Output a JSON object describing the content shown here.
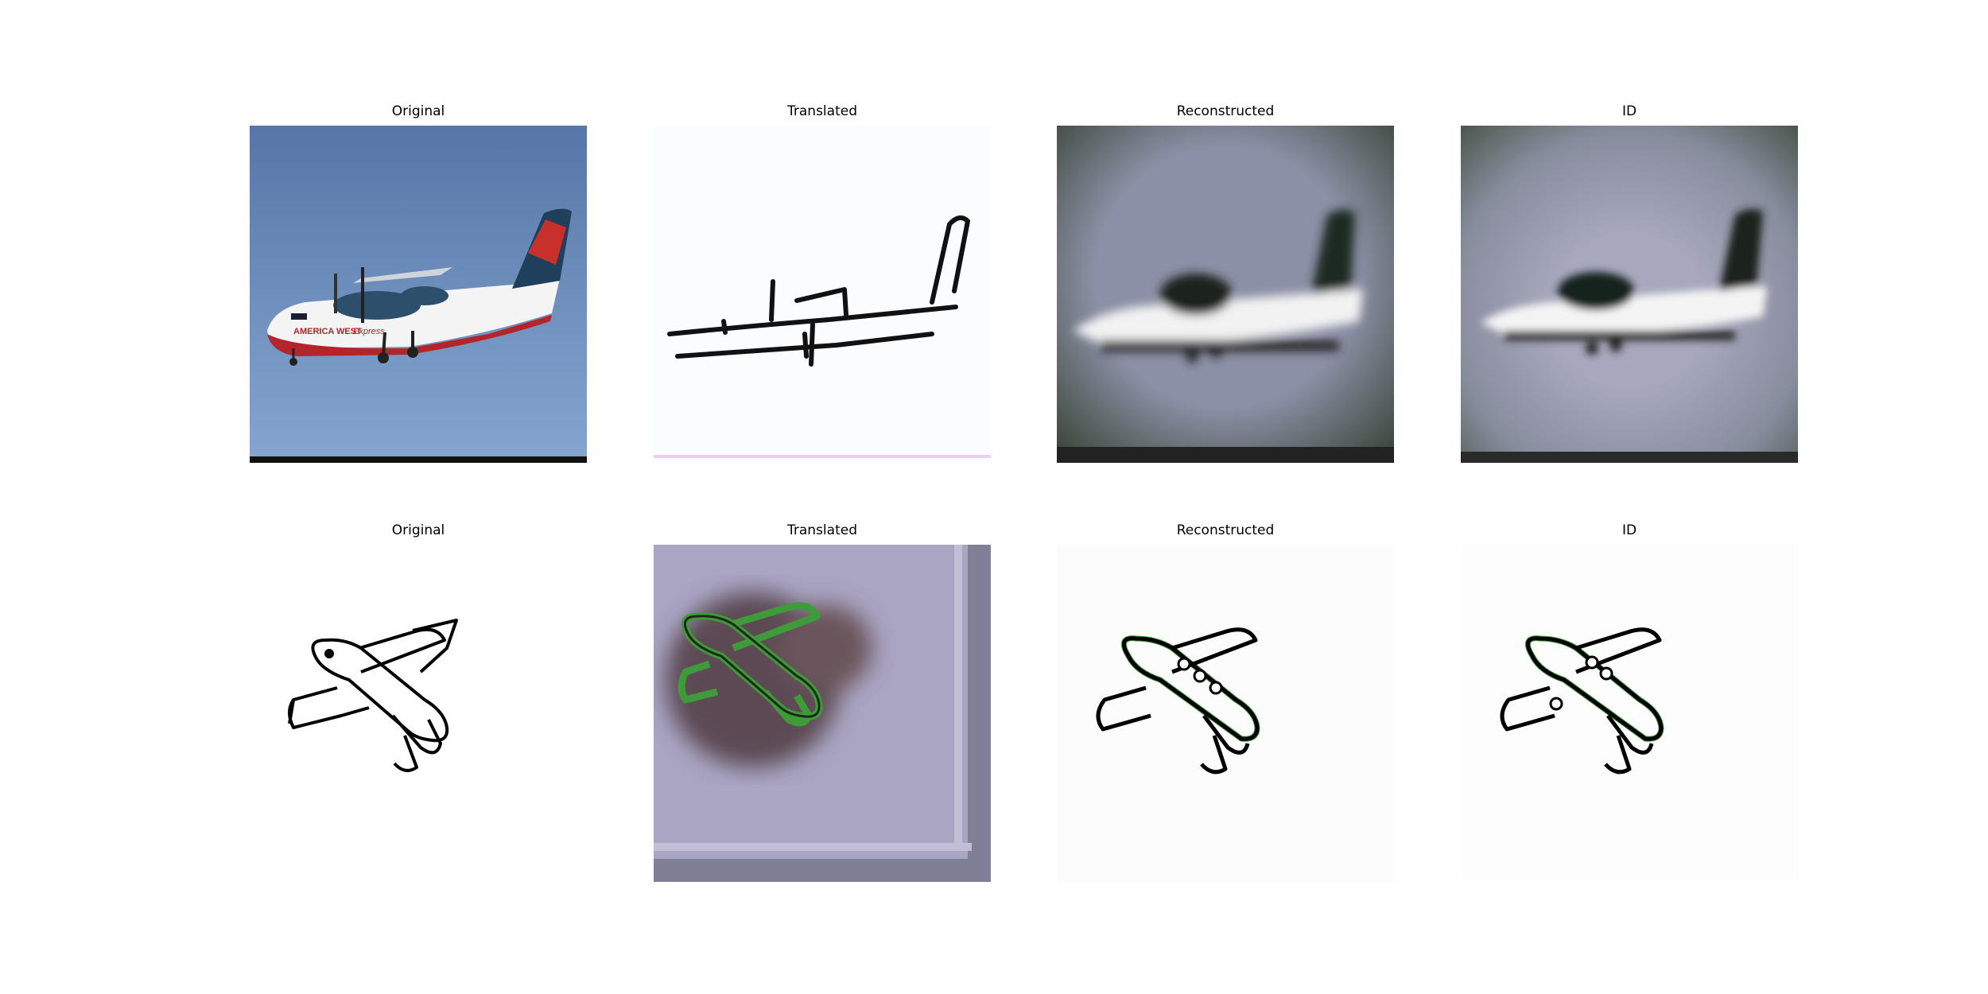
{
  "figure": {
    "rows": [
      {
        "panels": [
          {
            "title": "Original",
            "content": "photo of a twin-prop commuter aircraft against blue sky"
          },
          {
            "title": "Translated",
            "content": "sketch-style rendering of the aircraft on white background"
          },
          {
            "title": "Reconstructed",
            "content": "blurry photo-style reconstruction of the aircraft on grey-blue sky"
          },
          {
            "title": "ID",
            "content": "blurry photo-style identity mapping of the aircraft on grey-blue sky"
          }
        ],
        "photo_text": {
          "livery": "AMERICA WEST",
          "livery2": "Express"
        }
      },
      {
        "panels": [
          {
            "title": "Original",
            "content": "black line sketch of an airplane on white"
          },
          {
            "title": "Translated",
            "content": "photo-style airplane in green on lavender background"
          },
          {
            "title": "Reconstructed",
            "content": "line sketch of an airplane with green fringes"
          },
          {
            "title": "ID",
            "content": "line sketch of an airplane with green fringes"
          }
        ]
      }
    ],
    "colors": {
      "sky": "#6f8fbf",
      "sketch_line": "#000000",
      "reconstructed_bg": "#8a8fa3",
      "translated_bg": "#aaa6c4",
      "artifact_green": "#3f9a3a"
    }
  }
}
